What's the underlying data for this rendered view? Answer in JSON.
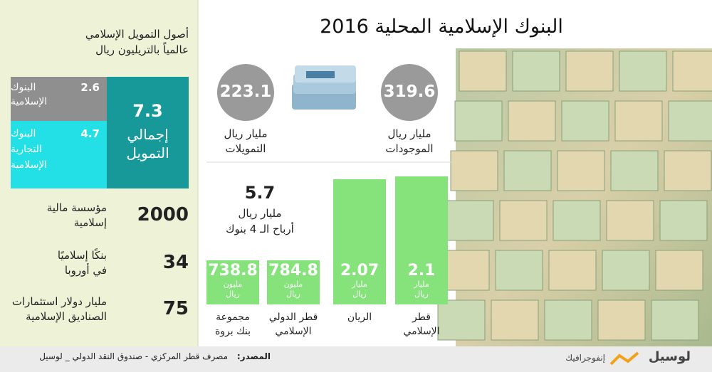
{
  "title": "البنوك الإسلامية المحلية 2016",
  "financing_assets": {
    "heading": [
      "أصول التمويل الإسلامي",
      "عالمياً بالتريليون ريال"
    ],
    "total": {
      "value": "7.3",
      "label": [
        "إجمالي",
        "التمويل"
      ]
    },
    "islamic_banks": {
      "value": "2.6",
      "label": [
        "البنوك",
        "الإسلامية"
      ]
    },
    "commercial": {
      "value": "4.7",
      "label": [
        "البنوك",
        "التجارية",
        "الإسلامية"
      ]
    }
  },
  "facts": [
    {
      "value": "2000",
      "label": [
        "مؤسسة مالية",
        "إسلامية"
      ]
    },
    {
      "value": "34",
      "label": [
        "بنكًا إسلاميًا",
        "في أوروبا"
      ]
    },
    {
      "value": "75",
      "label": [
        "مليار دولار استثمارات",
        "الصناديق الإسلامية"
      ]
    }
  ],
  "circles": [
    {
      "value": "319.6",
      "label": [
        "مليار ريال",
        "الموجودات"
      ]
    },
    {
      "value": "223.1",
      "label": [
        "مليار ريال",
        "التمويلات"
      ]
    }
  ],
  "profits": {
    "value": "5.7",
    "unit": "مليار ريال",
    "label": "أرباح الـ 4 بنوك"
  },
  "banks": [
    {
      "name": [
        "قطر",
        "الإسلامي"
      ],
      "value": "2.1",
      "unit": [
        "مليار",
        "ريال"
      ]
    },
    {
      "name": [
        "الريان"
      ],
      "value": "2.07",
      "unit": [
        "مليار",
        "ريال"
      ]
    },
    {
      "name": [
        "قطر الدولي",
        "الإسلامي"
      ],
      "value": "784.8",
      "unit": [
        "مليون",
        "ريال"
      ]
    },
    {
      "name": [
        "مجموعة",
        "بنك بروة"
      ],
      "value": "738.8",
      "unit": [
        "مليون",
        "ريال"
      ]
    }
  ],
  "source": {
    "label": "المصدر:",
    "text": "مصرف قطر المركزي - صندوق النقد الدولي _ لوسيل"
  },
  "brand": {
    "name": "لوسيل",
    "section": "إنفوجرافيك"
  }
}
